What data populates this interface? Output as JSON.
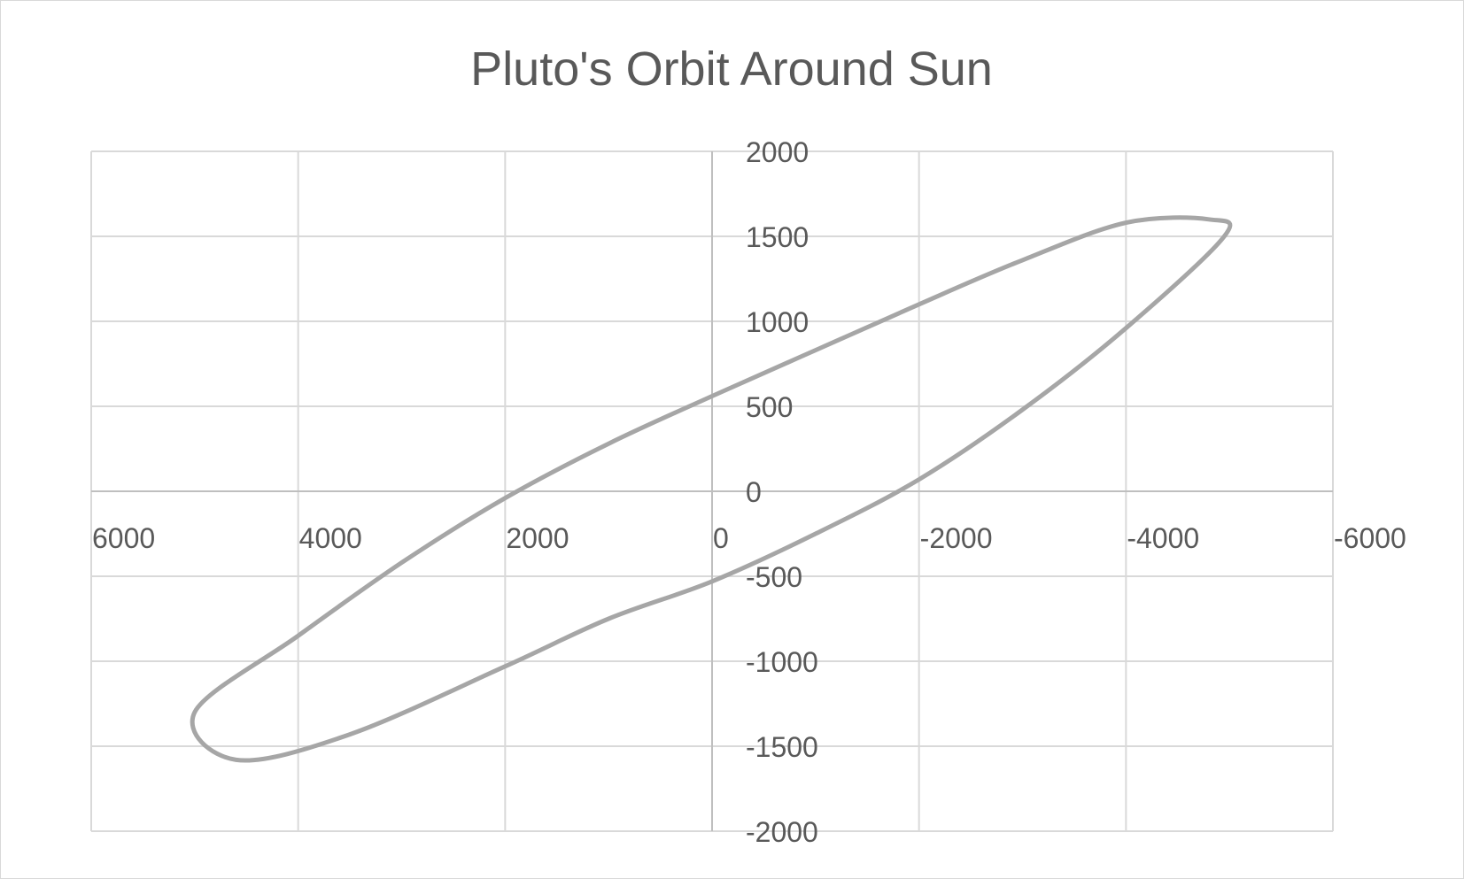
{
  "chart_data": {
    "type": "scatter",
    "title": "Pluto's Orbit Around Sun",
    "xlabel": "",
    "ylabel": "",
    "xlim": [
      6000,
      -6000
    ],
    "ylim": [
      -2000,
      2000
    ],
    "x_reversed": true,
    "x_ticks": [
      6000,
      4000,
      2000,
      0,
      -2000,
      -4000,
      -6000
    ],
    "x_tick_labels": [
      "6000",
      "4000",
      "2000",
      "0",
      "-2000",
      "-4000",
      "-6000"
    ],
    "y_ticks": [
      2000,
      1500,
      1000,
      500,
      0,
      -500,
      -1000,
      -1500,
      -2000
    ],
    "y_tick_labels": [
      "2000",
      "1500",
      "1000",
      "500",
      "0",
      "-500",
      "-1000",
      "-1500",
      "-2000"
    ],
    "grid": true,
    "legend": "none",
    "series_color": "#a6a6a6",
    "grid_color": "#d9d9d9",
    "axis_color": "#bfbfbf",
    "series": [
      {
        "style": "smooth-line",
        "points": [
          [
            -4800,
            1600
          ],
          [
            -4000,
            1580
          ],
          [
            -3000,
            1360
          ],
          [
            -2000,
            1100
          ],
          [
            -1000,
            830
          ],
          [
            0,
            560
          ],
          [
            1000,
            280
          ],
          [
            2000,
            -40
          ],
          [
            3000,
            -420
          ],
          [
            4000,
            -850
          ],
          [
            5000,
            -1300
          ],
          [
            4600,
            -1580
          ],
          [
            3500,
            -1430
          ],
          [
            2000,
            -1030
          ],
          [
            1000,
            -750
          ],
          [
            0,
            -530
          ],
          [
            -1000,
            -250
          ],
          [
            -2000,
            70
          ],
          [
            -3000,
            480
          ],
          [
            -4000,
            960
          ],
          [
            -4950,
            1500
          ],
          [
            -4800,
            1600
          ]
        ]
      }
    ]
  }
}
